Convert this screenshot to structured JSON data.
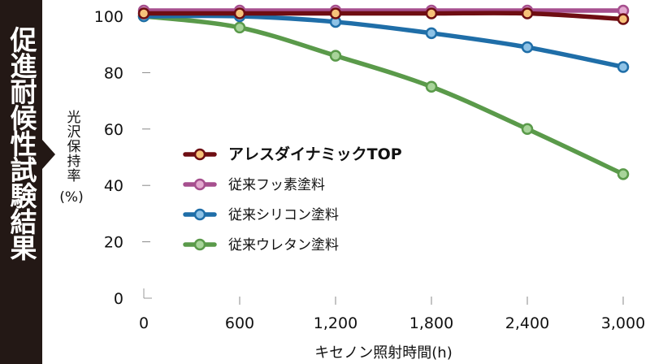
{
  "banner": {
    "title": "促進耐候性試験結果",
    "color": "#231815"
  },
  "chart_data": {
    "type": "line",
    "title": "促進耐候性試験結果",
    "xlabel": "キセノン照射時間(h)",
    "ylabel": "光沢保持率",
    "yunit": "(%)",
    "x": [
      0,
      600,
      1200,
      1800,
      2400,
      3000
    ],
    "x_tick_labels": [
      "0",
      "600",
      "1,200",
      "1,800",
      "2,400",
      "3,000"
    ],
    "y_ticks": [
      0,
      20,
      40,
      60,
      80,
      100
    ],
    "xlim": [
      0,
      3000
    ],
    "ylim": [
      0,
      100
    ],
    "grid": false,
    "legend_position": "center",
    "series": [
      {
        "name": "アレスダイナミックTOP",
        "color": "#6e0d12",
        "marker_fill": "#f6c27a",
        "bold": true,
        "values": [
          101,
          101,
          101,
          101,
          101,
          99
        ]
      },
      {
        "name": "従来フッ素塗料",
        "color": "#a64f8e",
        "marker_fill": "#e3a9cf",
        "bold": false,
        "values": [
          102,
          102,
          102,
          102,
          102,
          102
        ]
      },
      {
        "name": "従来シリコン塗料",
        "color": "#1f6ea8",
        "marker_fill": "#8ec2e6",
        "bold": false,
        "values": [
          100,
          100,
          98,
          94,
          89,
          82
        ]
      },
      {
        "name": "従来ウレタン塗料",
        "color": "#5a9a4a",
        "marker_fill": "#a8d49a",
        "bold": false,
        "values": [
          100,
          96,
          86,
          75,
          60,
          44
        ]
      }
    ]
  }
}
